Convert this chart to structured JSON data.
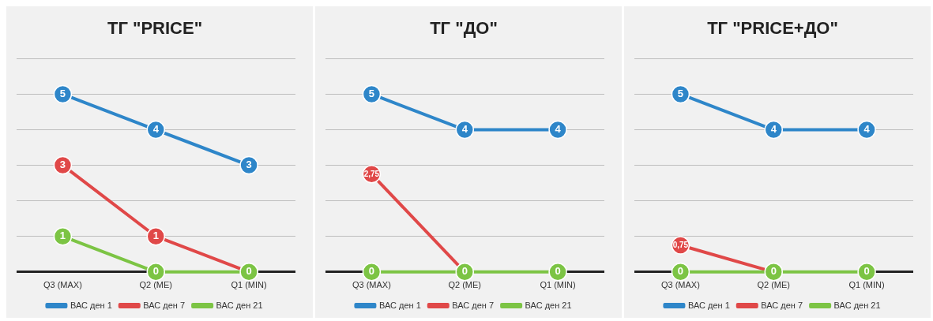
{
  "chart_data": [
    {
      "type": "line",
      "title": "ТГ \"PRICE\"",
      "categories": [
        "Q3 (MAX)",
        "Q2 (ME)",
        "Q1 (MIN)"
      ],
      "ylim": [
        0,
        6
      ],
      "yticks": [
        {
          "value": 0,
          "label": null
        },
        {
          "value": 1,
          "label": null
        },
        {
          "value": 2,
          "label": null
        },
        {
          "value": 3,
          "label": null
        },
        {
          "value": 4,
          "label": null
        },
        {
          "value": 5,
          "label": null
        },
        {
          "value": 6,
          "label": null
        }
      ],
      "tick_labels": "x",
      "grid": "y",
      "legend": "bottom",
      "marker": "circle",
      "series": [
        {
          "name": "ВАС ден 1",
          "color": "#2e86c9",
          "values": [
            5,
            4,
            3
          ],
          "value_labels": [
            "5",
            "4",
            "3"
          ]
        },
        {
          "name": "ВАС ден 7",
          "color": "#e04848",
          "values": [
            3,
            1,
            0
          ],
          "value_labels": [
            "3",
            "1",
            null
          ]
        },
        {
          "name": "ВАС ден 21",
          "color": "#7cc444",
          "values": [
            1,
            0,
            0
          ],
          "value_labels": [
            "1",
            "0",
            "0"
          ]
        }
      ]
    },
    {
      "type": "line",
      "title": "ТГ \"ДО\"",
      "categories": [
        "Q3 (MAX)",
        "Q2 (ME)",
        "Q1 (MIN)"
      ],
      "ylim": [
        0,
        6
      ],
      "yticks": [
        {
          "value": 0,
          "label": null
        },
        {
          "value": 1,
          "label": null
        },
        {
          "value": 2,
          "label": null
        },
        {
          "value": 3,
          "label": null
        },
        {
          "value": 4,
          "label": null
        },
        {
          "value": 5,
          "label": null
        },
        {
          "value": 6,
          "label": null
        }
      ],
      "tick_labels": "x",
      "grid": "y",
      "legend": "bottom",
      "marker": "circle",
      "series": [
        {
          "name": "ВАС ден 1",
          "color": "#2e86c9",
          "values": [
            5,
            4,
            4
          ],
          "value_labels": [
            "5",
            "4",
            "4"
          ]
        },
        {
          "name": "ВАС ден 7",
          "color": "#e04848",
          "values": [
            2.75,
            0,
            null
          ],
          "value_labels": [
            "2,75",
            null,
            null
          ]
        },
        {
          "name": "ВАС ден 21",
          "color": "#7cc444",
          "values": [
            0,
            0,
            0
          ],
          "value_labels": [
            "0",
            "0",
            "0"
          ]
        }
      ]
    },
    {
      "type": "line",
      "title": "ТГ \"PRICE+ДО\"",
      "categories": [
        "Q3 (MAX)",
        "Q2 (ME)",
        "Q1 (MIN)"
      ],
      "ylim": [
        0,
        6
      ],
      "yticks": [
        {
          "value": 0,
          "label": null
        },
        {
          "value": 1,
          "label": null
        },
        {
          "value": 2,
          "label": null
        },
        {
          "value": 3,
          "label": null
        },
        {
          "value": 4,
          "label": null
        },
        {
          "value": 5,
          "label": null
        },
        {
          "value": 6,
          "label": null
        }
      ],
      "tick_labels": "x",
      "grid": "y",
      "legend": "bottom",
      "marker": "circle",
      "series": [
        {
          "name": "ВАС ден 1",
          "color": "#2e86c9",
          "values": [
            5,
            4,
            4
          ],
          "value_labels": [
            "5",
            "4",
            "4"
          ]
        },
        {
          "name": "ВАС ден 7",
          "color": "#e04848",
          "values": [
            0.75,
            0,
            null
          ],
          "value_labels": [
            "0,75",
            null,
            null
          ]
        },
        {
          "name": "ВАС ден 21",
          "color": "#7cc444",
          "values": [
            0,
            0,
            0
          ],
          "value_labels": [
            "0",
            "0",
            "0"
          ]
        }
      ]
    }
  ]
}
